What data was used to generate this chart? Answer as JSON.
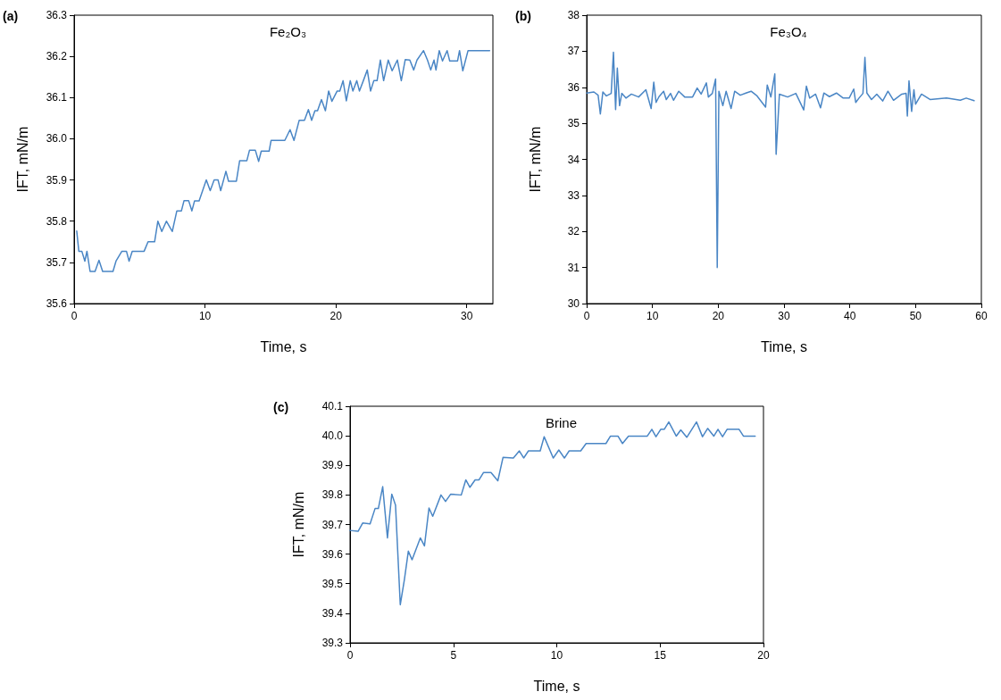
{
  "chart_data": [
    {
      "type": "line",
      "title": "Fe₂O₃",
      "annotations": [
        "(a)"
      ],
      "xlabel": "Time, s",
      "ylabel": "IFT, mN/m",
      "xlim": [
        0,
        32
      ],
      "xticks": [
        0,
        10,
        20,
        30
      ],
      "ylim": [
        35.6,
        36.3
      ],
      "yticks": [
        35.6,
        35.7,
        35.8,
        35.9,
        {
          "value": 36,
          "label": "36.0"
        },
        36.1,
        36.2,
        36.3
      ],
      "marker": "none",
      "line_style": "solid",
      "series": [
        {
          "color": "#4a86c5",
          "x": [
            0.2,
            0.36,
            0.59,
            0.82,
            0.98,
            1.22,
            1.6,
            1.9,
            2.18,
            2.97,
            3.2,
            3.65,
            4.0,
            4.2,
            4.44,
            5.35,
            5.65,
            6.15,
            6.4,
            6.7,
            7.05,
            7.5,
            7.85,
            8.2,
            8.4,
            8.75,
            9.0,
            9.2,
            9.55,
            10.1,
            10.4,
            10.7,
            11.0,
            11.2,
            11.6,
            11.8,
            12.4,
            12.65,
            13.2,
            13.4,
            13.85,
            14.1,
            14.3,
            14.9,
            15.05,
            16.1,
            16.5,
            16.8,
            17.2,
            17.6,
            17.9,
            18.15,
            18.4,
            18.6,
            18.9,
            19.2,
            19.45,
            19.7,
            20.1,
            20.3,
            20.55,
            20.8,
            21.1,
            21.3,
            21.6,
            21.8,
            22.1,
            22.4,
            22.65,
            22.9,
            23.15,
            23.4,
            23.65,
            24.0,
            24.3,
            24.7,
            25.0,
            25.3,
            25.65,
            25.95,
            26.2,
            26.7,
            27.0,
            27.25,
            27.5,
            27.65,
            27.9,
            28.15,
            28.5,
            28.7,
            29.3,
            29.45,
            29.7,
            30.1,
            31.75
          ],
          "values": [
            35.776,
            35.727,
            35.727,
            35.703,
            35.727,
            35.678,
            35.678,
            35.705,
            35.678,
            35.678,
            35.703,
            35.727,
            35.727,
            35.703,
            35.727,
            35.727,
            35.75,
            35.75,
            35.8,
            35.775,
            35.8,
            35.775,
            35.825,
            35.825,
            35.85,
            35.85,
            35.825,
            35.849,
            35.849,
            35.9,
            35.874,
            35.9,
            35.9,
            35.874,
            35.921,
            35.897,
            35.897,
            35.947,
            35.947,
            35.972,
            35.972,
            35.945,
            35.97,
            35.97,
            35.996,
            35.996,
            36.022,
            35.996,
            36.045,
            36.045,
            36.071,
            36.045,
            36.068,
            36.068,
            36.095,
            36.068,
            36.116,
            36.091,
            36.116,
            36.116,
            36.141,
            36.092,
            36.141,
            36.116,
            36.141,
            36.116,
            36.141,
            36.167,
            36.116,
            36.141,
            36.141,
            36.191,
            36.141,
            36.191,
            36.165,
            36.191,
            36.141,
            36.192,
            36.191,
            36.167,
            36.191,
            36.214,
            36.191,
            36.167,
            36.191,
            36.167,
            36.214,
            36.189,
            36.214,
            36.189,
            36.189,
            36.214,
            36.165,
            36.214,
            36.214
          ]
        }
      ]
    },
    {
      "type": "line",
      "title": "Fe₃O₄",
      "annotations": [
        "(b)"
      ],
      "xlabel": "Time, s",
      "ylabel": "IFT, mN/m",
      "xlim": [
        0,
        60
      ],
      "xticks": [
        0,
        10,
        20,
        30,
        40,
        50,
        60
      ],
      "ylim": [
        30,
        38
      ],
      "yticks": [
        30,
        31,
        32,
        33,
        34,
        35,
        36,
        37,
        38
      ],
      "marker": "none",
      "line_style": "solid",
      "series": [
        {
          "color": "#4a86c5",
          "x": [
            0,
            1.1,
            1.74,
            2.08,
            2.46,
            3.0,
            3.73,
            4.07,
            4.4,
            4.66,
            5.0,
            5.34,
            5.97,
            6.8,
            7.9,
            9.0,
            9.8,
            10.2,
            10.55,
            11.0,
            11.7,
            12.1,
            12.75,
            13.2,
            14.0,
            14.9,
            16.1,
            16.8,
            17.4,
            18.2,
            18.5,
            19.1,
            19.6,
            19.85,
            20.1,
            20.7,
            21.2,
            21.95,
            22.5,
            23.35,
            24.2,
            25.0,
            25.9,
            27.2,
            27.45,
            28.0,
            28.6,
            28.8,
            29.3,
            30.55,
            31.8,
            33.0,
            33.4,
            33.9,
            34.8,
            35.55,
            36.06,
            36.9,
            37.97,
            39.0,
            39.9,
            40.6,
            40.9,
            41.4,
            42.0,
            42.3,
            42.6,
            43.3,
            44.1,
            45.0,
            45.8,
            46.65,
            47.9,
            48.56,
            48.75,
            49.0,
            49.4,
            49.75,
            50.0,
            50.9,
            52.2,
            54.7,
            56.8,
            57.7,
            58.9
          ],
          "values": [
            35.84,
            35.87,
            35.78,
            35.26,
            35.87,
            35.76,
            35.83,
            36.97,
            35.38,
            36.53,
            35.49,
            35.83,
            35.7,
            35.81,
            35.73,
            35.93,
            35.41,
            36.14,
            35.58,
            35.74,
            35.89,
            35.66,
            35.83,
            35.64,
            35.89,
            35.73,
            35.73,
            35.98,
            35.81,
            36.12,
            35.73,
            35.83,
            36.23,
            31.0,
            35.89,
            35.49,
            35.89,
            35.41,
            35.89,
            35.78,
            35.84,
            35.89,
            35.76,
            35.45,
            36.06,
            35.73,
            36.37,
            34.14,
            35.81,
            35.73,
            35.83,
            35.37,
            36.03,
            35.7,
            35.81,
            35.43,
            35.84,
            35.74,
            35.84,
            35.7,
            35.7,
            35.95,
            35.58,
            35.7,
            35.83,
            36.83,
            35.84,
            35.66,
            35.81,
            35.62,
            35.89,
            35.64,
            35.81,
            35.83,
            35.2,
            36.18,
            35.33,
            35.93,
            35.53,
            35.81,
            35.66,
            35.7,
            35.64,
            35.7,
            35.63
          ]
        }
      ]
    },
    {
      "type": "line",
      "title": "Brine",
      "annotations": [
        "(c)"
      ],
      "xlabel": "Time, s",
      "ylabel": "IFT, mN/m",
      "xlim": [
        0,
        20
      ],
      "xticks": [
        0,
        5,
        10,
        15,
        20
      ],
      "ylim": [
        39.3,
        40.1
      ],
      "yticks": [
        39.3,
        39.4,
        39.5,
        39.6,
        39.7,
        39.8,
        39.9,
        {
          "value": 40,
          "label": "40.0"
        },
        40.1
      ],
      "marker": "none",
      "line_style": "solid",
      "series": [
        {
          "color": "#4a86c5",
          "x": [
            0,
            0.39,
            0.61,
            0.97,
            1.21,
            1.37,
            1.58,
            1.81,
            2.02,
            2.2,
            2.43,
            2.63,
            2.82,
            3.0,
            3.4,
            3.6,
            3.82,
            4.0,
            4.4,
            4.62,
            4.87,
            5.38,
            5.6,
            5.8,
            6.05,
            6.24,
            6.46,
            6.82,
            7.15,
            7.4,
            7.9,
            8.19,
            8.4,
            8.63,
            9.2,
            9.39,
            9.83,
            10.1,
            10.37,
            10.6,
            11.16,
            11.42,
            12.38,
            12.6,
            12.96,
            13.18,
            13.47,
            14.38,
            14.6,
            14.8,
            15.03,
            15.2,
            15.42,
            15.78,
            16.0,
            16.29,
            16.76,
            17.05,
            17.3,
            17.6,
            17.8,
            18.02,
            18.24,
            18.82,
            19.03,
            19.6
          ],
          "values": [
            39.68,
            39.677,
            39.705,
            39.702,
            39.754,
            39.754,
            39.828,
            39.655,
            39.803,
            39.766,
            39.429,
            39.514,
            39.61,
            39.581,
            39.655,
            39.628,
            39.756,
            39.728,
            39.8,
            39.778,
            39.803,
            39.8,
            39.851,
            39.826,
            39.851,
            39.851,
            39.876,
            39.876,
            39.848,
            39.927,
            39.925,
            39.949,
            39.925,
            39.949,
            39.949,
            39.997,
            39.925,
            39.952,
            39.925,
            39.949,
            39.949,
            39.974,
            39.974,
            39.999,
            39.999,
            39.974,
            39.999,
            39.999,
            40.022,
            39.997,
            40.022,
            40.022,
            40.047,
            39.999,
            40.02,
            39.995,
            40.047,
            39.997,
            40.025,
            39.999,
            40.022,
            39.997,
            40.022,
            40.022,
            39.999,
            39.999
          ]
        }
      ]
    }
  ]
}
